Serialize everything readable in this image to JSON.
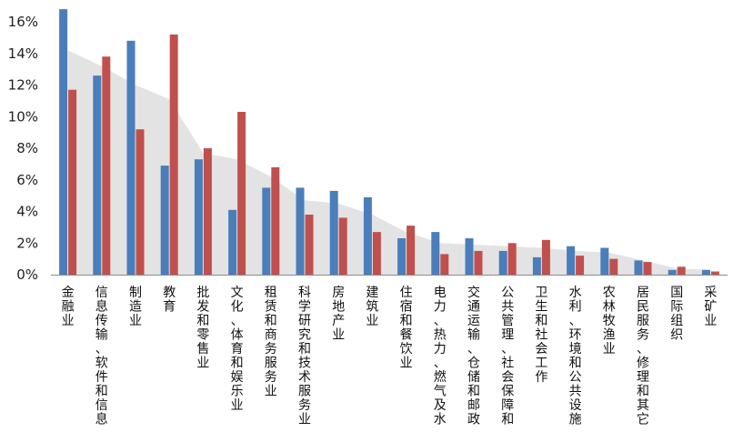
{
  "chart_data": {
    "type": "bar",
    "title": "",
    "xlabel": "",
    "ylabel": "",
    "ylim": [
      0,
      16
    ],
    "yticks": [
      "0%",
      "2%",
      "4%",
      "6%",
      "8%",
      "10%",
      "12%",
      "14%",
      "16%"
    ],
    "grid": false,
    "legend": "none",
    "categories": [
      "金融业",
      "信息传输、软件和信息",
      "制造业",
      "教育",
      "批发和零售业",
      "文化、体育和娱乐业",
      "租赁和商务服务业",
      "科学研究和技术服务业",
      "房地产业",
      "建筑业",
      "住宿和餐饮业",
      "电力、热力、燃气及水",
      "交通运输、仓储和邮政",
      "公共管理、社会保障和",
      "卫生和社会工作",
      "水利、环境和公共设施",
      "农林牧渔业",
      "居民服务、修理和其它",
      "国际组织",
      "采矿业"
    ],
    "series": [
      {
        "values": [
          16.8,
          12.6,
          14.8,
          6.9,
          7.3,
          4.1,
          5.5,
          5.5,
          5.3,
          4.9,
          2.3,
          2.7,
          2.3,
          1.5,
          1.1,
          1.8,
          1.7,
          0.9,
          0.3,
          0.3
        ],
        "color": "#4a7ebb"
      },
      {
        "values": [
          11.7,
          13.8,
          9.2,
          15.2,
          8.0,
          10.3,
          6.8,
          3.8,
          3.6,
          2.7,
          3.1,
          1.3,
          1.5,
          2.0,
          2.2,
          1.2,
          1.0,
          0.8,
          0.5,
          0.2
        ],
        "color": "#c0504d"
      },
      {
        "values": [
          14.2,
          13.2,
          12.0,
          11.1,
          7.7,
          7.3,
          6.2,
          4.7,
          4.5,
          3.8,
          2.7,
          2.0,
          1.9,
          1.8,
          1.7,
          1.5,
          1.4,
          0.9,
          0.4,
          0.3
        ],
        "color": "#d9d9d9",
        "style": "area"
      }
    ]
  }
}
